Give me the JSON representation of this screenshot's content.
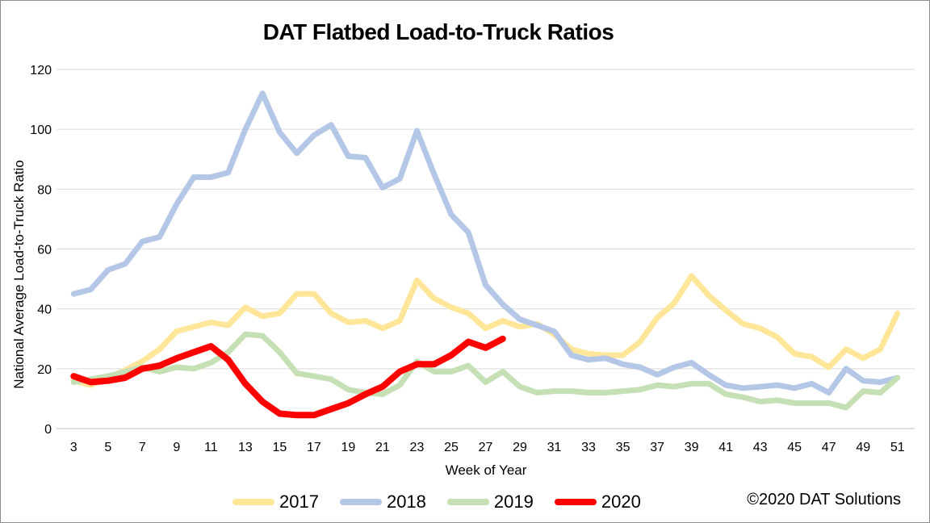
{
  "chart_data": {
    "type": "line",
    "title": "DAT Flatbed Load-to-Truck Ratios",
    "xlabel": "Week of Year",
    "ylabel": "National Average Load-to-Truck Ratio",
    "xlim": [
      3,
      51
    ],
    "ylim": [
      0,
      120
    ],
    "yticks": [
      0,
      20,
      40,
      60,
      80,
      100,
      120
    ],
    "xticks": [
      3,
      5,
      7,
      9,
      11,
      13,
      15,
      17,
      19,
      21,
      23,
      25,
      27,
      29,
      31,
      33,
      35,
      37,
      39,
      41,
      43,
      45,
      47,
      49,
      51
    ],
    "grid": "horizontal",
    "legend_position": "bottom",
    "credit": "©2020 DAT Solutions",
    "series": [
      {
        "name": "2017",
        "color": "#FFE699",
        "x": [
          3,
          4,
          5,
          6,
          7,
          8,
          9,
          10,
          11,
          12,
          13,
          14,
          15,
          16,
          17,
          18,
          19,
          20,
          21,
          22,
          23,
          24,
          25,
          26,
          27,
          28,
          29,
          30,
          31,
          32,
          33,
          34,
          35,
          36,
          37,
          38,
          39,
          40,
          41,
          42,
          43,
          44,
          45,
          46,
          47,
          48,
          49,
          50,
          51
        ],
        "values": [
          16,
          14.5,
          17,
          19.5,
          22.5,
          26.5,
          32.5,
          34,
          35.5,
          34.5,
          40.5,
          37.5,
          38.5,
          45,
          45,
          38.5,
          35.5,
          36,
          33.5,
          36,
          49.5,
          43.5,
          40.5,
          38.5,
          33.5,
          36,
          34,
          35,
          31.5,
          26.5,
          25,
          24.5,
          24.5,
          29,
          37,
          42,
          51,
          44.5,
          39.5,
          35,
          33.5,
          30.5,
          25,
          24,
          20.5,
          26.5,
          23.5,
          26.5,
          38.5
        ]
      },
      {
        "name": "2018",
        "color": "#B4C7E7",
        "x": [
          3,
          4,
          5,
          6,
          7,
          8,
          9,
          10,
          11,
          12,
          13,
          14,
          15,
          16,
          17,
          18,
          19,
          20,
          21,
          22,
          23,
          24,
          25,
          26,
          27,
          28,
          29,
          30,
          31,
          32,
          33,
          34,
          35,
          36,
          37,
          38,
          39,
          40,
          41,
          42,
          43,
          44,
          45,
          46,
          47,
          48,
          49,
          50,
          51
        ],
        "values": [
          45,
          46.5,
          53,
          55,
          62.5,
          64,
          75,
          84,
          84,
          85.5,
          100,
          112,
          99,
          92,
          98,
          101.5,
          91,
          90.5,
          80.5,
          83.5,
          99.5,
          85,
          71.5,
          65.5,
          48,
          41.5,
          36.5,
          34.5,
          32.5,
          24.5,
          23,
          23.5,
          21.5,
          20.5,
          18,
          20.5,
          22,
          18,
          14.5,
          13.5,
          14,
          14.5,
          13.5,
          15,
          12,
          20,
          16,
          15.5,
          17
        ]
      },
      {
        "name": "2019",
        "color": "#C5E0B4",
        "x": [
          3,
          4,
          5,
          6,
          7,
          8,
          9,
          10,
          11,
          12,
          13,
          14,
          15,
          16,
          17,
          18,
          19,
          20,
          21,
          22,
          23,
          24,
          25,
          26,
          27,
          28,
          29,
          30,
          31,
          32,
          33,
          34,
          35,
          36,
          37,
          38,
          39,
          40,
          41,
          42,
          43,
          44,
          45,
          46,
          47,
          48,
          49,
          50,
          51
        ],
        "values": [
          15.5,
          16.5,
          17.5,
          19,
          20.5,
          19,
          20.5,
          20,
          22,
          25.5,
          31.5,
          31,
          25.5,
          18.5,
          17.5,
          16.5,
          13,
          12,
          11.5,
          14.5,
          22.5,
          19,
          19,
          21,
          15.5,
          19,
          14,
          12,
          12.5,
          12.5,
          12,
          12,
          12.5,
          13,
          14.5,
          14,
          15,
          15,
          11.5,
          10.5,
          9,
          9.5,
          8.5,
          8.5,
          8.5,
          7,
          12.5,
          12,
          17
        ]
      },
      {
        "name": "2020",
        "color": "#FF0000",
        "x": [
          3,
          4,
          5,
          6,
          7,
          8,
          9,
          10,
          11,
          12,
          13,
          14,
          15,
          16,
          17,
          18,
          19,
          20,
          21,
          22,
          23,
          24,
          25,
          26,
          27,
          28
        ],
        "values": [
          17.5,
          15.5,
          16,
          17,
          20,
          21,
          23.5,
          25.5,
          27.5,
          23,
          15,
          9,
          5,
          4.5,
          4.5,
          6.5,
          8.5,
          11.5,
          14,
          19,
          21.5,
          21.5,
          24.5,
          29,
          27,
          30
        ]
      }
    ]
  }
}
